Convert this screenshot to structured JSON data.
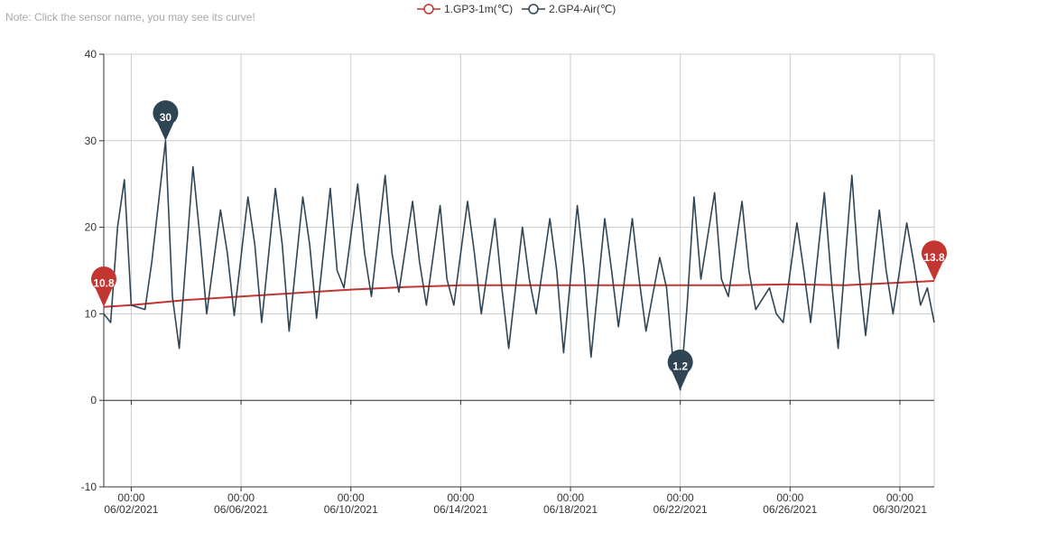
{
  "note": "Note: Click the sensor name, you may see its curve!",
  "legend": [
    {
      "label": "1.GP3-1m(℃)",
      "color": "#c23531"
    },
    {
      "label": "2.GP4-Air(℃)",
      "color": "#2f4554"
    }
  ],
  "chart_data": {
    "type": "line",
    "y_axis": {
      "min": -10,
      "max": 40,
      "ticks": [
        -10,
        0,
        10,
        20,
        30,
        40
      ]
    },
    "x_axis": {
      "min": "2021-06-01 00:00",
      "max": "2021-07-01 06:00",
      "ticks": [
        {
          "date": "2021-06-02 00:00",
          "time": "00:00",
          "label": "06/02/2021"
        },
        {
          "date": "2021-06-06 00:00",
          "time": "00:00",
          "label": "06/06/2021"
        },
        {
          "date": "2021-06-10 00:00",
          "time": "00:00",
          "label": "06/10/2021"
        },
        {
          "date": "2021-06-14 00:00",
          "time": "00:00",
          "label": "06/14/2021"
        },
        {
          "date": "2021-06-18 00:00",
          "time": "00:00",
          "label": "06/18/2021"
        },
        {
          "date": "2021-06-22 00:00",
          "time": "00:00",
          "label": "06/22/2021"
        },
        {
          "date": "2021-06-26 00:00",
          "time": "00:00",
          "label": "06/26/2021"
        },
        {
          "date": "2021-06-30 00:00",
          "time": "00:00",
          "label": "06/30/2021"
        }
      ]
    },
    "grid": true,
    "series": [
      {
        "name": "1.GP3-1m(℃)",
        "color": "#c23531",
        "x": [
          "2021-06-01 00:00",
          "2021-06-02 00:00",
          "2021-06-04 00:00",
          "2021-06-06 00:00",
          "2021-06-08 00:00",
          "2021-06-10 00:00",
          "2021-06-12 00:00",
          "2021-06-14 00:00",
          "2021-06-16 00:00",
          "2021-06-18 00:00",
          "2021-06-20 00:00",
          "2021-06-22 00:00",
          "2021-06-24 00:00",
          "2021-06-26 00:00",
          "2021-06-28 00:00",
          "2021-06-30 00:00",
          "2021-07-01 06:00"
        ],
        "y": [
          10.8,
          11.0,
          11.6,
          12.0,
          12.4,
          12.8,
          13.1,
          13.3,
          13.3,
          13.3,
          13.3,
          13.3,
          13.3,
          13.4,
          13.3,
          13.6,
          13.8
        ],
        "markers": [
          {
            "type": "min",
            "value": "10.8"
          },
          {
            "type": "max",
            "value": "13.8"
          }
        ]
      },
      {
        "name": "2.GP4-Air(℃)",
        "color": "#2f4554",
        "x": [
          "2021-06-01 00:00",
          "2021-06-01 06:00",
          "2021-06-01 12:00",
          "2021-06-01 18:00",
          "2021-06-02 00:00",
          "2021-06-02 12:00",
          "2021-06-02 18:00",
          "2021-06-03 06:00",
          "2021-06-03 12:00",
          "2021-06-03 18:00",
          "2021-06-04 06:00",
          "2021-06-04 12:00",
          "2021-06-04 18:00",
          "2021-06-05 06:00",
          "2021-06-05 12:00",
          "2021-06-05 18:00",
          "2021-06-06 06:00",
          "2021-06-06 12:00",
          "2021-06-06 18:00",
          "2021-06-07 06:00",
          "2021-06-07 12:00",
          "2021-06-07 18:00",
          "2021-06-08 06:00",
          "2021-06-08 12:00",
          "2021-06-08 18:00",
          "2021-06-09 06:00",
          "2021-06-09 12:00",
          "2021-06-09 18:00",
          "2021-06-10 06:00",
          "2021-06-10 12:00",
          "2021-06-10 18:00",
          "2021-06-11 06:00",
          "2021-06-11 12:00",
          "2021-06-11 18:00",
          "2021-06-12 06:00",
          "2021-06-12 12:00",
          "2021-06-12 18:00",
          "2021-06-13 06:00",
          "2021-06-13 12:00",
          "2021-06-13 18:00",
          "2021-06-14 06:00",
          "2021-06-14 12:00",
          "2021-06-14 18:00",
          "2021-06-15 06:00",
          "2021-06-15 12:00",
          "2021-06-15 18:00",
          "2021-06-16 06:00",
          "2021-06-16 12:00",
          "2021-06-16 18:00",
          "2021-06-17 06:00",
          "2021-06-17 12:00",
          "2021-06-17 18:00",
          "2021-06-18 06:00",
          "2021-06-18 12:00",
          "2021-06-18 18:00",
          "2021-06-19 06:00",
          "2021-06-19 12:00",
          "2021-06-19 18:00",
          "2021-06-20 06:00",
          "2021-06-20 12:00",
          "2021-06-20 18:00",
          "2021-06-21 06:00",
          "2021-06-21 12:00",
          "2021-06-21 18:00",
          "2021-06-22 00:00",
          "2021-06-22 06:00",
          "2021-06-22 12:00",
          "2021-06-22 18:00",
          "2021-06-23 06:00",
          "2021-06-23 12:00",
          "2021-06-23 18:00",
          "2021-06-24 06:00",
          "2021-06-24 12:00",
          "2021-06-24 18:00",
          "2021-06-25 06:00",
          "2021-06-25 12:00",
          "2021-06-25 18:00",
          "2021-06-26 06:00",
          "2021-06-26 12:00",
          "2021-06-26 18:00",
          "2021-06-27 06:00",
          "2021-06-27 12:00",
          "2021-06-27 18:00",
          "2021-06-28 06:00",
          "2021-06-28 12:00",
          "2021-06-28 18:00",
          "2021-06-29 06:00",
          "2021-06-29 12:00",
          "2021-06-29 18:00",
          "2021-06-30 06:00",
          "2021-06-30 12:00",
          "2021-06-30 18:00",
          "2021-07-01 00:00",
          "2021-07-01 06:00"
        ],
        "y": [
          10.0,
          9.0,
          20.0,
          25.5,
          11.0,
          10.5,
          16.0,
          30.0,
          12.0,
          6.0,
          27.0,
          19.0,
          10.0,
          22.0,
          17.0,
          9.8,
          23.5,
          18.0,
          9.0,
          24.5,
          18.0,
          8.0,
          23.5,
          18.0,
          9.5,
          24.5,
          15.0,
          13.0,
          25.0,
          17.0,
          12.0,
          26.0,
          17.0,
          12.5,
          23.0,
          16.0,
          11.0,
          22.5,
          14.0,
          11.0,
          23.0,
          17.0,
          10.0,
          21.0,
          13.0,
          6.0,
          20.0,
          14.0,
          10.0,
          21.0,
          15.0,
          5.5,
          22.5,
          15.0,
          5.0,
          21.0,
          15.0,
          8.5,
          21.0,
          14.0,
          8.0,
          16.5,
          13.0,
          4.0,
          1.2,
          11.0,
          23.5,
          14.0,
          24.0,
          14.0,
          12.0,
          23.0,
          15.0,
          10.5,
          13.0,
          10.0,
          9.0,
          20.5,
          15.0,
          9.0,
          24.0,
          14.0,
          6.0,
          26.0,
          15.0,
          7.5,
          22.0,
          15.0,
          10.0,
          20.5,
          16.0,
          11.0,
          13.0,
          9.0
        ],
        "markers": [
          {
            "type": "max",
            "value": "30"
          },
          {
            "type": "min",
            "value": "1.2"
          }
        ]
      }
    ]
  }
}
